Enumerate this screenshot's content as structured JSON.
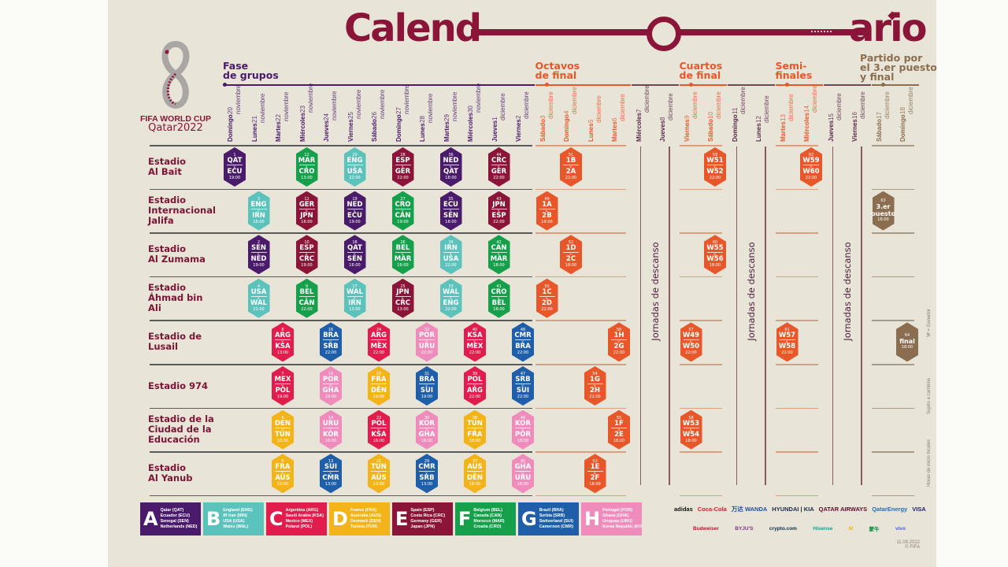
{
  "title": {
    "left": "Calend",
    "right": "ario",
    "color": "#8a1538"
  },
  "logo": {
    "line1": "FIFA WORLD CUP",
    "line2": "Qatar2022"
  },
  "phases": [
    {
      "key": "groups",
      "label": "Fase\nde grupos",
      "color": "#4a1a6b"
    },
    {
      "key": "r16",
      "label": "Octavos\nde final",
      "color": "#e8572a"
    },
    {
      "key": "qf",
      "label": "Cuartos\nde final",
      "color": "#e8572a"
    },
    {
      "key": "sf",
      "label": "Semi-\nfinales",
      "color": "#e8572a"
    },
    {
      "key": "final",
      "label": "Partido por\nel 3.er puesto\ny final",
      "color": "#8b6e50"
    }
  ],
  "rest": {
    "label": "Jornadas de descanso",
    "color": "#5a2a4a"
  },
  "dates": [
    {
      "day": "Domingo",
      "date": "20 noviembre",
      "phase": "groups"
    },
    {
      "day": "Lunes",
      "date": "21 noviembre",
      "phase": "groups"
    },
    {
      "day": "Martes",
      "date": "22 noviembre",
      "phase": "groups"
    },
    {
      "day": "Miércoles",
      "date": "23 noviembre",
      "phase": "groups"
    },
    {
      "day": "Jueves",
      "date": "24 noviembre",
      "phase": "groups"
    },
    {
      "day": "Viernes",
      "date": "25 noviembre",
      "phase": "groups"
    },
    {
      "day": "Sábado",
      "date": "26 noviembre",
      "phase": "groups"
    },
    {
      "day": "Domingo",
      "date": "27 noviembre",
      "phase": "groups"
    },
    {
      "day": "Lunes",
      "date": "28 noviembre",
      "phase": "groups"
    },
    {
      "day": "Martes",
      "date": "29 noviembre",
      "phase": "groups"
    },
    {
      "day": "Miércoles",
      "date": "30 noviembre",
      "phase": "groups"
    },
    {
      "day": "Jueves",
      "date": "1 diciembre",
      "phase": "groups"
    },
    {
      "day": "Viernes",
      "date": "2 diciembre",
      "phase": "groups"
    },
    {
      "day": "Sábado",
      "date": "3 diciembre",
      "phase": "r16"
    },
    {
      "day": "Domingo",
      "date": "4 diciembre",
      "phase": "r16"
    },
    {
      "day": "Lunes",
      "date": "5 diciembre",
      "phase": "r16"
    },
    {
      "day": "Martes",
      "date": "6 diciembre",
      "phase": "r16"
    },
    {
      "day": "Miércoles",
      "date": "7 diciembre",
      "phase": "rest"
    },
    {
      "day": "Jueves",
      "date": "8 diciembre",
      "phase": "rest"
    },
    {
      "day": "Viernes",
      "date": "9 diciembre",
      "phase": "qf"
    },
    {
      "day": "Sábado",
      "date": "10 diciembre",
      "phase": "qf"
    },
    {
      "day": "Domingo",
      "date": "11 diciembre",
      "phase": "rest"
    },
    {
      "day": "Lunes",
      "date": "12 diciembre",
      "phase": "rest"
    },
    {
      "day": "Martes",
      "date": "13 diciembre",
      "phase": "sf"
    },
    {
      "day": "Miércoles",
      "date": "14 diciembre",
      "phase": "sf"
    },
    {
      "day": "Jueves",
      "date": "15 diciembre",
      "phase": "rest"
    },
    {
      "day": "Viernes",
      "date": "16 diciembre",
      "phase": "rest"
    },
    {
      "day": "Sábado",
      "date": "17 diciembre",
      "phase": "final"
    },
    {
      "day": "Domingo",
      "date": "18 diciembre",
      "phase": "final"
    }
  ],
  "colors": {
    "A": "#4a1a6b",
    "B": "#5cc2bc",
    "C": "#e11d4d",
    "D": "#f3b419",
    "E": "#8a1538",
    "F": "#17a04b",
    "G": "#1f5ea8",
    "H": "#ef8cbc",
    "KO": "#e8572a",
    "FINAL": "#8b6e50"
  },
  "stadiums": [
    {
      "name": "Estadio\nAl Bait",
      "matches": [
        {
          "num": "1",
          "home": "QAT",
          "away": "ECU",
          "time": "19:00",
          "date": "20 noviembre",
          "group": "A"
        },
        {
          "num": "12",
          "home": "MAR",
          "away": "CRO",
          "time": "13:00",
          "date": "23 noviembre",
          "group": "F"
        },
        {
          "num": "20",
          "home": "ENG",
          "away": "USA",
          "time": "22:00",
          "date": "25 noviembre",
          "group": "B"
        },
        {
          "num": "28",
          "home": "ESP",
          "away": "GER",
          "time": "22:00",
          "date": "27 noviembre",
          "group": "E"
        },
        {
          "num": "36",
          "home": "NED",
          "away": "QAT",
          "time": "18:00",
          "date": "29 noviembre",
          "group": "A"
        },
        {
          "num": "44",
          "home": "CRC",
          "away": "GER",
          "time": "22:00",
          "date": "1 diciembre",
          "group": "E"
        },
        {
          "num": "51",
          "home": "1B",
          "away": "2A",
          "time": "22:00",
          "date": "4 diciembre",
          "group": "KO"
        },
        {
          "num": "59",
          "home": "W51",
          "away": "W52",
          "time": "22:00",
          "date": "10 diciembre",
          "group": "KO"
        },
        {
          "num": "62",
          "home": "W59",
          "away": "W60",
          "time": "22:00",
          "date": "14 diciembre",
          "group": "KO"
        }
      ]
    },
    {
      "name": "Estadio\nInternacional\nJalifa",
      "matches": [
        {
          "num": "3",
          "home": "ENG",
          "away": "IRN",
          "time": "16:00",
          "date": "21 noviembre",
          "group": "B"
        },
        {
          "num": "11",
          "home": "GER",
          "away": "JPN",
          "time": "16:00",
          "date": "23 noviembre",
          "group": "E"
        },
        {
          "num": "19",
          "home": "NED",
          "away": "ECU",
          "time": "19:00",
          "date": "25 noviembre",
          "group": "A"
        },
        {
          "num": "27",
          "home": "CRO",
          "away": "CAN",
          "time": "19:00",
          "date": "27 noviembre",
          "group": "F"
        },
        {
          "num": "35",
          "home": "ECU",
          "away": "SEN",
          "time": "18:00",
          "date": "29 noviembre",
          "group": "A"
        },
        {
          "num": "43",
          "home": "JPN",
          "away": "ESP",
          "time": "22:00",
          "date": "1 diciembre",
          "group": "E"
        },
        {
          "num": "49",
          "home": "1A",
          "away": "2B",
          "time": "18:00",
          "date": "3 diciembre",
          "group": "KO"
        },
        {
          "num": "63",
          "label": "3.er\npuesto",
          "time": "18:00",
          "date": "17 diciembre",
          "group": "FINAL"
        }
      ]
    },
    {
      "name": "Estadio\nAl Zumama",
      "matches": [
        {
          "num": "2",
          "home": "SEN",
          "away": "NED",
          "time": "19:00",
          "date": "21 noviembre",
          "group": "A"
        },
        {
          "num": "10",
          "home": "ESP",
          "away": "CRC",
          "time": "19:00",
          "date": "23 noviembre",
          "group": "E"
        },
        {
          "num": "18",
          "home": "QAT",
          "away": "SEN",
          "time": "16:00",
          "date": "25 noviembre",
          "group": "A"
        },
        {
          "num": "26",
          "home": "BEL",
          "away": "MAR",
          "time": "16:00",
          "date": "27 noviembre",
          "group": "F"
        },
        {
          "num": "34",
          "home": "IRN",
          "away": "USA",
          "time": "22:00",
          "date": "29 noviembre",
          "group": "B"
        },
        {
          "num": "42",
          "home": "CAN",
          "away": "MAR",
          "time": "18:00",
          "date": "1 diciembre",
          "group": "F"
        },
        {
          "num": "52",
          "home": "1D",
          "away": "2C",
          "time": "18:00",
          "date": "4 diciembre",
          "group": "KO"
        },
        {
          "num": "60",
          "home": "W55",
          "away": "W56",
          "time": "18:00",
          "date": "10 diciembre",
          "group": "KO"
        }
      ]
    },
    {
      "name": "Estadio\nÁhmad bin\nAli",
      "matches": [
        {
          "num": "4",
          "home": "USA",
          "away": "WAL",
          "time": "22:00",
          "date": "21 noviembre",
          "group": "B"
        },
        {
          "num": "9",
          "home": "BEL",
          "away": "CAN",
          "time": "22:00",
          "date": "23 noviembre",
          "group": "F"
        },
        {
          "num": "17",
          "home": "WAL",
          "away": "IRN",
          "time": "13:00",
          "date": "25 noviembre",
          "group": "B"
        },
        {
          "num": "25",
          "home": "JPN",
          "away": "CRC",
          "time": "13:00",
          "date": "27 noviembre",
          "group": "E"
        },
        {
          "num": "33",
          "home": "WAL",
          "away": "ENG",
          "time": "22:00",
          "date": "29 noviembre",
          "group": "B"
        },
        {
          "num": "41",
          "home": "CRO",
          "away": "BEL",
          "time": "18:00",
          "date": "1 diciembre",
          "group": "F"
        },
        {
          "num": "50",
          "home": "1C",
          "away": "2D",
          "time": "22:00",
          "date": "3 diciembre",
          "group": "KO"
        }
      ]
    },
    {
      "name": "Estadio de\nLusail",
      "matches": [
        {
          "num": "8",
          "home": "ARG",
          "away": "KSA",
          "time": "13:00",
          "date": "22 noviembre",
          "group": "C"
        },
        {
          "num": "16",
          "home": "BRA",
          "away": "SRB",
          "time": "22:00",
          "date": "24 noviembre",
          "group": "G"
        },
        {
          "num": "24",
          "home": "ARG",
          "away": "MEX",
          "time": "22:00",
          "date": "26 noviembre",
          "group": "C"
        },
        {
          "num": "32",
          "home": "POR",
          "away": "URU",
          "time": "22:00",
          "date": "28 noviembre",
          "group": "H"
        },
        {
          "num": "40",
          "home": "KSA",
          "away": "MEX",
          "time": "22:00",
          "date": "30 noviembre",
          "group": "C"
        },
        {
          "num": "48",
          "home": "CMR",
          "away": "BRA",
          "time": "22:00",
          "date": "2 diciembre",
          "group": "G"
        },
        {
          "num": "56",
          "home": "1H",
          "away": "2G",
          "time": "22:00",
          "date": "6 diciembre",
          "group": "KO"
        },
        {
          "num": "57",
          "home": "W49",
          "away": "W50",
          "time": "22:00",
          "date": "9 diciembre",
          "group": "KO"
        },
        {
          "num": "61",
          "home": "W57",
          "away": "W58",
          "time": "22:00",
          "date": "13 diciembre",
          "group": "KO"
        },
        {
          "num": "64",
          "label": "final",
          "time": "18:00",
          "date": "18 diciembre",
          "group": "FINAL"
        }
      ]
    },
    {
      "name": "Estadio 974",
      "matches": [
        {
          "num": "7",
          "home": "MEX",
          "away": "POL",
          "time": "19:00",
          "date": "22 noviembre",
          "group": "C"
        },
        {
          "num": "15",
          "home": "POR",
          "away": "GHA",
          "time": "19:00",
          "date": "24 noviembre",
          "group": "H"
        },
        {
          "num": "23",
          "home": "FRA",
          "away": "DEN",
          "time": "19:00",
          "date": "26 noviembre",
          "group": "D"
        },
        {
          "num": "31",
          "home": "BRA",
          "away": "SUI",
          "time": "19:00",
          "date": "28 noviembre",
          "group": "G"
        },
        {
          "num": "39",
          "home": "POL",
          "away": "ARG",
          "time": "22:00",
          "date": "30 noviembre",
          "group": "C"
        },
        {
          "num": "47",
          "home": "SRB",
          "away": "SUI",
          "time": "22:00",
          "date": "2 diciembre",
          "group": "G"
        },
        {
          "num": "54",
          "home": "1G",
          "away": "2H",
          "time": "22:00",
          "date": "5 diciembre",
          "group": "KO"
        }
      ]
    },
    {
      "name": "Estadio de la\nCiudad de la\nEducación",
      "matches": [
        {
          "num": "6",
          "home": "DEN",
          "away": "TUN",
          "time": "16:00",
          "date": "22 noviembre",
          "group": "D"
        },
        {
          "num": "14",
          "home": "URU",
          "away": "KOR",
          "time": "16:00",
          "date": "24 noviembre",
          "group": "H"
        },
        {
          "num": "22",
          "home": "POL",
          "away": "KSA",
          "time": "16:00",
          "date": "26 noviembre",
          "group": "C"
        },
        {
          "num": "30",
          "home": "KOR",
          "away": "GHA",
          "time": "16:00",
          "date": "28 noviembre",
          "group": "H"
        },
        {
          "num": "38",
          "home": "TUN",
          "away": "FRA",
          "time": "18:00",
          "date": "30 noviembre",
          "group": "D"
        },
        {
          "num": "46",
          "home": "KOR",
          "away": "POR",
          "time": "18:00",
          "date": "2 diciembre",
          "group": "H"
        },
        {
          "num": "55",
          "home": "1F",
          "away": "2E",
          "time": "18:00",
          "date": "6 diciembre",
          "group": "KO"
        },
        {
          "num": "58",
          "home": "W53",
          "away": "W54",
          "time": "18:00",
          "date": "9 diciembre",
          "group": "KO"
        }
      ]
    },
    {
      "name": "Estadio\nAl Yanub",
      "matches": [
        {
          "num": "5",
          "home": "FRA",
          "away": "AUS",
          "time": "22:00",
          "date": "22 noviembre",
          "group": "D"
        },
        {
          "num": "13",
          "home": "SUI",
          "away": "CMR",
          "time": "13:00",
          "date": "24 noviembre",
          "group": "G"
        },
        {
          "num": "21",
          "home": "TUN",
          "away": "AUS",
          "time": "13:00",
          "date": "26 noviembre",
          "group": "D"
        },
        {
          "num": "29",
          "home": "CMR",
          "away": "SRB",
          "time": "13:00",
          "date": "28 noviembre",
          "group": "G"
        },
        {
          "num": "37",
          "home": "AUS",
          "away": "DEN",
          "time": "18:00",
          "date": "30 noviembre",
          "group": "D"
        },
        {
          "num": "45",
          "home": "GHA",
          "away": "URU",
          "time": "18:00",
          "date": "2 diciembre",
          "group": "H"
        },
        {
          "num": "53",
          "home": "1E",
          "away": "2F",
          "time": "18:00",
          "date": "5 diciembre",
          "group": "KO"
        }
      ]
    }
  ],
  "vs": "v.",
  "groups": [
    {
      "letter": "A",
      "teams": [
        "Qatar (QAT)",
        "Ecuador (ECU)",
        "Senegal (SEN)",
        "Netherlands (NED)"
      ]
    },
    {
      "letter": "B",
      "teams": [
        "England (ENG)",
        "IR Iran (IRN)",
        "USA (USA)",
        "Wales (WAL)"
      ]
    },
    {
      "letter": "C",
      "teams": [
        "Argentina (ARG)",
        "Saudi Arabia (KSA)",
        "Mexico (MEX)",
        "Poland (POL)"
      ]
    },
    {
      "letter": "D",
      "teams": [
        "France (FRA)",
        "Australia (AUS)",
        "Denmark (DEN)",
        "Tunisia (TUN)"
      ]
    },
    {
      "letter": "E",
      "teams": [
        "Spain (ESP)",
        "Costa Rica (CRC)",
        "Germany (GER)",
        "Japan (JPN)"
      ]
    },
    {
      "letter": "F",
      "teams": [
        "Belgium (BEL)",
        "Canada (CAN)",
        "Morocco (MAR)",
        "Croatia (CRO)"
      ]
    },
    {
      "letter": "G",
      "teams": [
        "Brazil (BRA)",
        "Serbia (SRB)",
        "Switzerland (SUI)",
        "Cameroon (CMR)"
      ]
    },
    {
      "letter": "H",
      "teams": [
        "Portugal (POR)",
        "Ghana (GHA)",
        "Uruguay (URU)",
        "Korea Republic (KOR)"
      ]
    }
  ],
  "sponsors": {
    "row1": [
      {
        "name": "adidas",
        "color": "#111111"
      },
      {
        "name": "Coca-Cola",
        "color": "#d0202a"
      },
      {
        "name": "万达 WANDA",
        "color": "#1d4f9c"
      },
      {
        "name": "HYUNDAI | KIA",
        "color": "#1b2a4a"
      },
      {
        "name": "QATAR AIRWAYS",
        "color": "#5c0a2e"
      },
      {
        "name": "QatarEnergy",
        "color": "#2a6cb0"
      },
      {
        "name": "VISA",
        "color": "#1a1f71"
      }
    ],
    "row2": [
      {
        "name": "Budweiser",
        "color": "#c8102e"
      },
      {
        "name": "BYJU'S",
        "color": "#813588"
      },
      {
        "name": "crypto.com",
        "color": "#0b2a4a"
      },
      {
        "name": "Hisense",
        "color": "#00a69c"
      },
      {
        "name": "M",
        "color": "#f5b800"
      },
      {
        "name": "蒙牛",
        "color": "#0a8a3c"
      },
      {
        "name": "vivo",
        "color": "#415fff"
      }
    ]
  },
  "notes": {
    "winner": "W = Ganador",
    "subject": "Sujeto a cambios",
    "local": "Horas de inicio locales"
  },
  "footer": {
    "date": "11.08.2022",
    "copyright": "© FIFA"
  }
}
